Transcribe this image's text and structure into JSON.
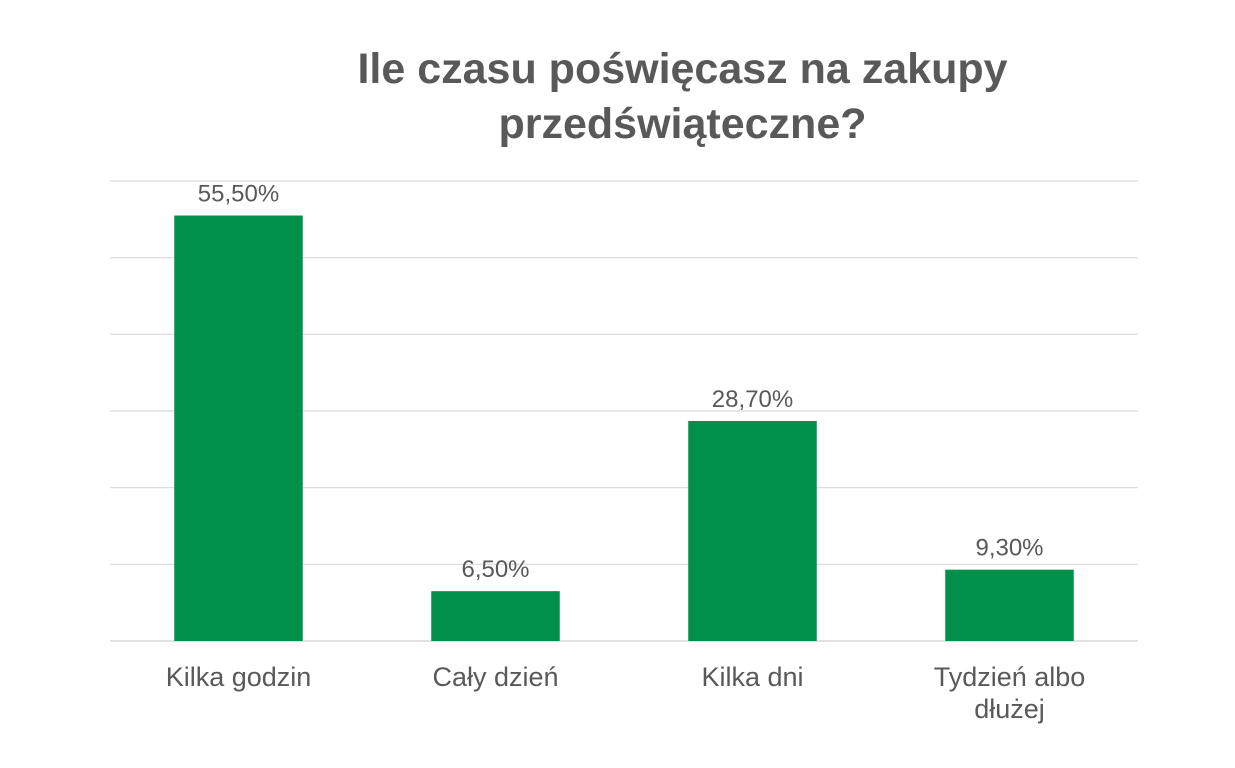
{
  "chart_data": {
    "type": "bar",
    "title": [
      "Ile czasu poświęcasz na zakupy",
      "przedświąteczne?"
    ],
    "categories": [
      [
        "Kilka godzin"
      ],
      [
        "Cały dzień"
      ],
      [
        "Kilka dni"
      ],
      [
        "Tydzień albo",
        "dłużej"
      ]
    ],
    "values": [
      55.5,
      6.5,
      28.7,
      9.3
    ],
    "data_labels": [
      "55,50%",
      "6,50%",
      "28,70%",
      "9,30%"
    ],
    "ylim": [
      0,
      60
    ],
    "grid": true,
    "legend": "none",
    "bar_color": "#00904A",
    "gridline_color": "#D9D9D9",
    "text_color": "#595959"
  }
}
